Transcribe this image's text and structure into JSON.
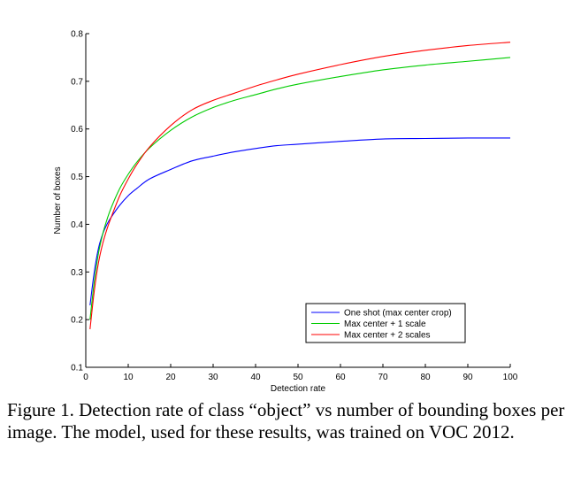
{
  "caption": "Figure 1. Detection rate of class “object” vs number of bounding boxes per image. The model, used for these results, was trained on VOC 2012.",
  "chart_data": {
    "type": "line",
    "title": "",
    "xlabel": "Detection rate",
    "ylabel": "Number of boxes",
    "xlim": [
      0,
      100
    ],
    "ylim": [
      0.1,
      0.8
    ],
    "xticks": [
      0,
      10,
      20,
      30,
      40,
      50,
      60,
      70,
      80,
      90,
      100
    ],
    "xtick_labels": [
      "0",
      "10",
      "20",
      "30",
      "40",
      "50",
      "60",
      "70",
      "80",
      "90",
      "100"
    ],
    "yticks": [
      0.1,
      0.2,
      0.3,
      0.4,
      0.5,
      0.6,
      0.7,
      0.8
    ],
    "ytick_labels": [
      "0.1",
      "0.2",
      "0.3",
      "0.4",
      "0.5",
      "0.6",
      "0.7",
      "0.8"
    ],
    "grid": false,
    "legend_position": "lower-right",
    "series": [
      {
        "name": "One shot (max center crop)",
        "color": "#0000ff",
        "x": [
          1,
          2,
          3,
          4,
          5,
          6,
          8,
          10,
          12,
          15,
          20,
          25,
          30,
          35,
          40,
          45,
          50,
          60,
          70,
          80,
          90,
          100
        ],
        "y": [
          0.23,
          0.3,
          0.35,
          0.38,
          0.4,
          0.415,
          0.44,
          0.46,
          0.475,
          0.495,
          0.515,
          0.533,
          0.543,
          0.552,
          0.559,
          0.565,
          0.568,
          0.574,
          0.579,
          0.58,
          0.581,
          0.581
        ]
      },
      {
        "name": "Max center + 1 scale",
        "color": "#00cc00",
        "x": [
          1,
          2,
          3,
          4,
          5,
          6,
          8,
          10,
          12,
          15,
          20,
          25,
          30,
          35,
          40,
          45,
          50,
          60,
          70,
          80,
          90,
          100
        ],
        "y": [
          0.2,
          0.28,
          0.34,
          0.38,
          0.41,
          0.435,
          0.475,
          0.505,
          0.53,
          0.56,
          0.597,
          0.625,
          0.645,
          0.66,
          0.672,
          0.684,
          0.694,
          0.71,
          0.724,
          0.734,
          0.742,
          0.75
        ]
      },
      {
        "name": "Max center + 2 scales",
        "color": "#ff0000",
        "x": [
          1,
          2,
          3,
          4,
          5,
          6,
          8,
          10,
          12,
          15,
          20,
          25,
          30,
          35,
          40,
          45,
          50,
          60,
          70,
          80,
          90,
          100
        ],
        "y": [
          0.18,
          0.26,
          0.32,
          0.36,
          0.39,
          0.415,
          0.46,
          0.495,
          0.525,
          0.562,
          0.607,
          0.64,
          0.66,
          0.675,
          0.69,
          0.703,
          0.715,
          0.735,
          0.752,
          0.765,
          0.775,
          0.782
        ]
      }
    ]
  }
}
